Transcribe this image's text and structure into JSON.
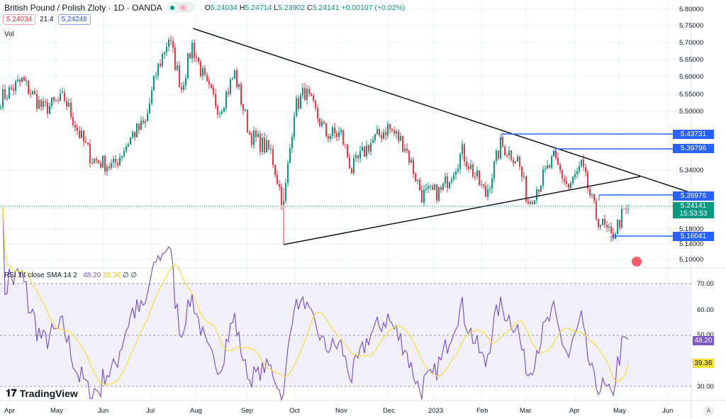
{
  "header": {
    "title": "British Pound / Polish Zloty · 1D · OANDA",
    "o_label": "O",
    "o": "5.24034",
    "h_label": "H",
    "h": "5.24714",
    "l_label": "L",
    "l": "5.23902",
    "c_label": "C",
    "c": "5.24141",
    "change": "+0.00107 (+0.02%)",
    "market_status_icon": "market-open-dot"
  },
  "quote": {
    "bid": "5.24034",
    "spread": "21.4",
    "ask": "5.24248"
  },
  "volume_label": "Vol",
  "price_axis": [
    "5.80000",
    "5.75000",
    "5.70000",
    "5.65000",
    "5.60000",
    "5.55000",
    "5.50000",
    "5.34000",
    "5.18000",
    "5.14000",
    "5.10000"
  ],
  "levels": [
    {
      "value": "5.43731"
    },
    {
      "value": "5.39796"
    },
    {
      "value": "5.26976"
    },
    {
      "value": "5.16041"
    }
  ],
  "last_price": {
    "value": "5.24141",
    "countdown": "15:53:53"
  },
  "rsi": {
    "label": "RSI 14 close SMA 14 2",
    "value": "48.20",
    "sma": "39.36",
    "extra1": "∅",
    "extra2": "∅",
    "axis": [
      "70.00",
      "60.00",
      "50.00",
      "30.00"
    ]
  },
  "time_axis": [
    "Apr",
    "May",
    "Jun",
    "Jul",
    "Aug",
    "Sep",
    "Oct",
    "Nov",
    "Dec",
    "2023",
    "Feb",
    "Mar",
    "Apr",
    "May",
    "Jun"
  ],
  "brand": "TradingView",
  "auto_scale": "A",
  "colors": {
    "up": "#089981",
    "down": "#f23645",
    "level": "#2962ff",
    "rsi": "#7e57c2",
    "sma": "#f5e13b"
  },
  "chart_data": {
    "type": "candlestick",
    "price_path": [
      [
        0,
        5.55
      ],
      [
        10,
        5.6
      ],
      [
        20,
        5.52
      ],
      [
        30,
        5.55
      ],
      [
        37,
        5.45
      ],
      [
        43,
        5.38
      ],
      [
        53,
        5.36
      ],
      [
        62,
        5.45
      ],
      [
        68,
        5.48
      ],
      [
        73,
        5.62
      ],
      [
        79,
        5.72
      ],
      [
        85,
        5.58
      ],
      [
        90,
        5.7
      ],
      [
        97,
        5.58
      ],
      [
        103,
        5.52
      ],
      [
        110,
        5.62
      ],
      [
        117,
        5.45
      ],
      [
        127,
        5.4
      ],
      [
        133,
        5.25
      ],
      [
        138,
        5.52
      ],
      [
        143,
        5.57
      ],
      [
        153,
        5.45
      ],
      [
        160,
        5.45
      ],
      [
        165,
        5.35
      ],
      [
        173,
        5.42
      ],
      [
        182,
        5.47
      ],
      [
        190,
        5.42
      ],
      [
        198,
        5.28
      ],
      [
        207,
        5.29
      ],
      [
        217,
        5.4
      ],
      [
        228,
        5.28
      ],
      [
        235,
        5.42
      ],
      [
        243,
        5.38
      ],
      [
        248,
        5.26
      ],
      [
        260,
        5.38
      ],
      [
        267,
        5.3
      ],
      [
        273,
        5.36
      ],
      [
        280,
        5.22
      ],
      [
        287,
        5.16
      ],
      [
        292,
        5.22
      ],
      [
        295,
        5.24
      ]
    ]
  }
}
